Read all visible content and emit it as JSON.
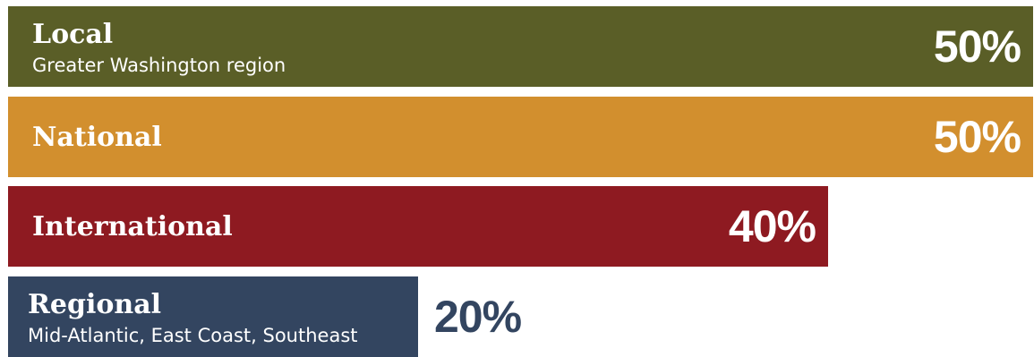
{
  "chart_data": {
    "type": "bar",
    "orientation": "horizontal",
    "xlim": [
      0,
      50
    ],
    "grid": false,
    "categories": [
      "Local",
      "National",
      "International",
      "Regional"
    ],
    "subtitles": [
      "Greater Washington region",
      "",
      "",
      "Mid-Atlantic, East Coast, Southeast"
    ],
    "values": [
      50,
      50,
      40,
      20
    ],
    "value_labels": [
      "50%",
      "50%",
      "40%",
      "20%"
    ],
    "colors": [
      "#5a5e27",
      "#d28f2e",
      "#8e1a21",
      "#334560"
    ]
  }
}
